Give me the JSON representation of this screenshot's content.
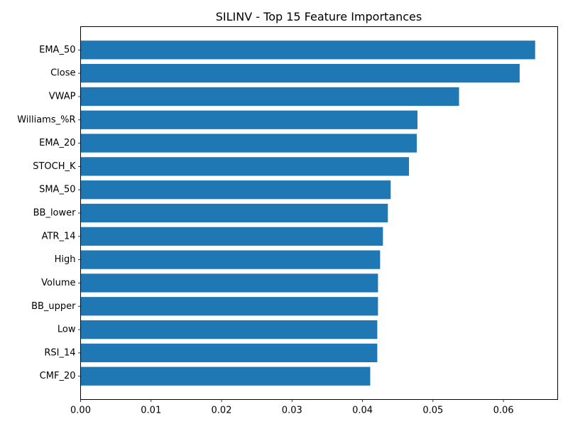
{
  "chart_data": {
    "type": "bar",
    "orientation": "horizontal",
    "title": "SILINV - Top 15 Feature Importances",
    "xlabel": "",
    "ylabel": "",
    "categories": [
      "EMA_50",
      "Close",
      "VWAP",
      "Williams_%R",
      "EMA_20",
      "STOCH_K",
      "SMA_50",
      "BB_lower",
      "ATR_14",
      "High",
      "Volume",
      "BB_upper",
      "Low",
      "RSI_14",
      "CMF_20"
    ],
    "values": [
      0.0645,
      0.0623,
      0.0537,
      0.0478,
      0.0477,
      0.0466,
      0.044,
      0.0436,
      0.0429,
      0.0425,
      0.0422,
      0.0422,
      0.0421,
      0.0421,
      0.0411
    ],
    "xlim": [
      0,
      0.0677
    ],
    "xticks": [
      0.0,
      0.01,
      0.02,
      0.03,
      0.04,
      0.05,
      0.06
    ],
    "xtick_labels": [
      "0.00",
      "0.01",
      "0.02",
      "0.03",
      "0.04",
      "0.05",
      "0.06"
    ],
    "grid": false,
    "bar_color": "#1f77b4"
  }
}
